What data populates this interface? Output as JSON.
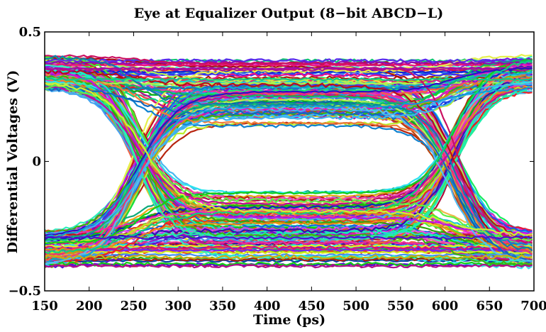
{
  "chart_data": {
    "type": "line",
    "title": "Eye at Equalizer Output (8−bit ABCD−L)",
    "xlabel": "Time (ps)",
    "ylabel": "Differential Voltages (V)",
    "xlim": [
      150,
      700
    ],
    "ylim": [
      -0.5,
      0.5
    ],
    "x_ticks": [
      150,
      200,
      250,
      300,
      350,
      400,
      450,
      500,
      550,
      600,
      650,
      700
    ],
    "x_tick_labels": [
      "150",
      "200",
      "250",
      "300",
      "350",
      "400",
      "450",
      "500",
      "550",
      "600",
      "650",
      "700"
    ],
    "y_ticks": [
      -0.5,
      0,
      0.5
    ],
    "y_tick_labels": [
      "−0.5",
      "0",
      "0.5"
    ],
    "grid": false,
    "legend": "none",
    "eye": {
      "trace_count": 260,
      "high_level_range": [
        0.28,
        0.41
      ],
      "low_level_range": [
        -0.41,
        -0.27
      ],
      "crossing_times": [
        255,
        610
      ],
      "eye_top": 0.19,
      "eye_bottom": -0.2,
      "eye_center_time": 450
    }
  }
}
